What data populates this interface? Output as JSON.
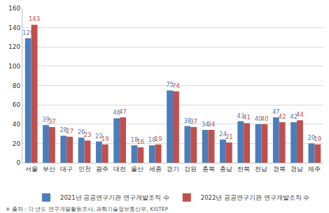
{
  "chart_data": {
    "type": "bar",
    "categories": [
      "서울",
      "부산",
      "대구",
      "인천",
      "광주",
      "대전",
      "울산",
      "세종",
      "경기",
      "강원",
      "충북",
      "충남",
      "전북",
      "전남",
      "경북",
      "경남",
      "제주"
    ],
    "series": [
      {
        "name": "2021년 공공연구기관 연구개발조직 수",
        "color": "#4a7ebb",
        "values": [
          129,
          39,
          28,
          26,
          22,
          46,
          18,
          18,
          75,
          38,
          34,
          24,
          43,
          40,
          47,
          42,
          20
        ]
      },
      {
        "name": "2022년 공공연구기관 연구개발조직 수",
        "color": "#c0504d",
        "values": [
          143,
          37,
          27,
          23,
          19,
          47,
          16,
          19,
          74,
          37,
          34,
          21,
          41,
          40,
          42,
          44,
          19
        ]
      }
    ],
    "ylim": [
      0,
      160
    ],
    "yticks": [
      0,
      20,
      40,
      60,
      80,
      100,
      120,
      140,
      160
    ],
    "grid": true,
    "legend": "bottom",
    "data_labels": true,
    "source": "※ 출처 : 각 년도 연구개발활동조사, 과학기술정보통신부, KISTEP"
  }
}
